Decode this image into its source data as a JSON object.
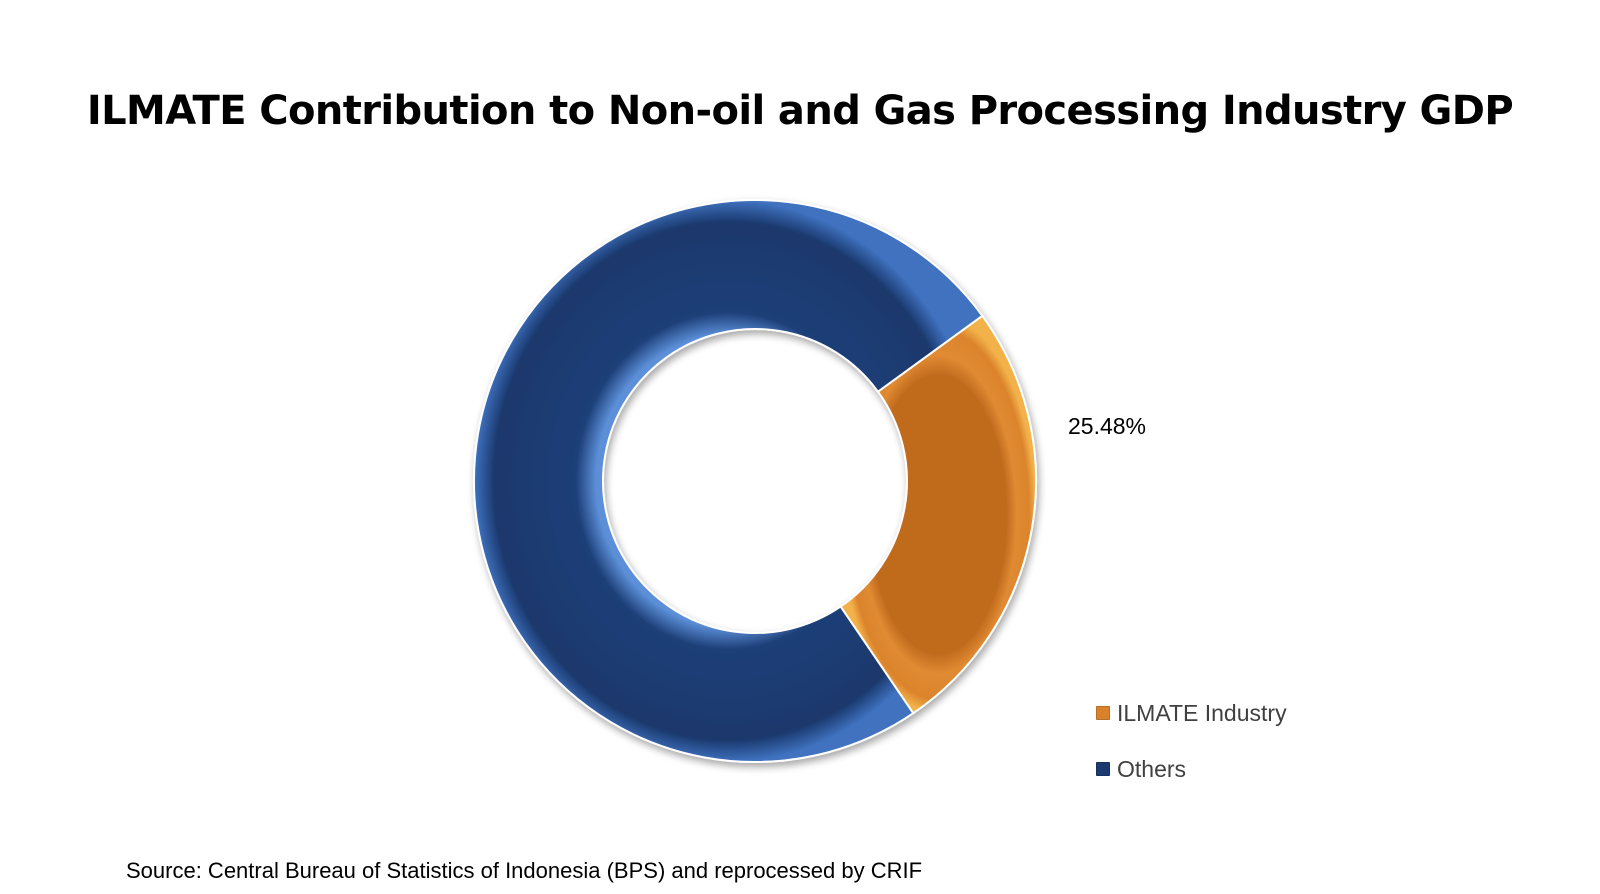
{
  "chart_data": {
    "type": "pie",
    "title": "ILMATE Contribution to Non-oil and Gas Processing Industry GDP",
    "categories": [
      "ILMATE Industry",
      "Others"
    ],
    "values": [
      25.48,
      74.52
    ],
    "data_labels": [
      "25.48%",
      ""
    ],
    "colors": [
      "#D9822B",
      "#1B3A6F"
    ],
    "donut": true,
    "legend_position": "bottom-right",
    "source": "Source: Central Bureau of Statistics of Indonesia (BPS) and reprocessed by CRIF"
  }
}
